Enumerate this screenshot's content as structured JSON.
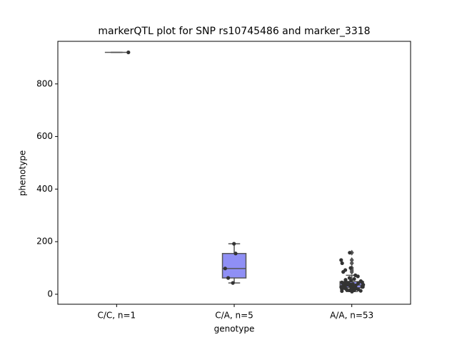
{
  "chart_data": {
    "type": "box",
    "title": "markerQTL plot for SNP rs10745486 and marker_3318",
    "x_label": "genotype",
    "y_label": "phenotype",
    "categories": [
      "C/C, n=1",
      "C/A, n=5",
      "A/A, n=53"
    ],
    "boxes": [
      {
        "whisker_low": 920,
        "q1": 920,
        "median": 920,
        "q3": 920,
        "whisker_high": 920,
        "outliers": [],
        "color": "#8f8ff5"
      },
      {
        "whisker_low": 43,
        "q1": 62,
        "median": 98,
        "q3": 155,
        "whisker_high": 192,
        "outliers": [],
        "color": "#8f8ff5"
      },
      {
        "whisker_low": 10,
        "q1": 25,
        "median": 35,
        "q3": 48,
        "whisker_high": 72,
        "outliers": [
          85,
          92,
          100,
          118,
          130,
          158
        ],
        "color": "#8f8ff5"
      }
    ],
    "points": [
      [
        920
      ],
      [
        192,
        155,
        98,
        62,
        43
      ],
      [
        10,
        12,
        13,
        15,
        15,
        17,
        18,
        20,
        20,
        21,
        22,
        23,
        24,
        25,
        25,
        26,
        27,
        28,
        28,
        29,
        30,
        30,
        31,
        32,
        33,
        34,
        35,
        35,
        36,
        37,
        38,
        39,
        40,
        40,
        42,
        43,
        44,
        45,
        46,
        48,
        50,
        52,
        55,
        58,
        62,
        68,
        72,
        85,
        92,
        100,
        118,
        130,
        158
      ]
    ],
    "point_color": "#333333",
    "ylim": [
      -38,
      962
    ],
    "yticks": [
      0,
      200,
      400,
      600,
      800
    ]
  }
}
